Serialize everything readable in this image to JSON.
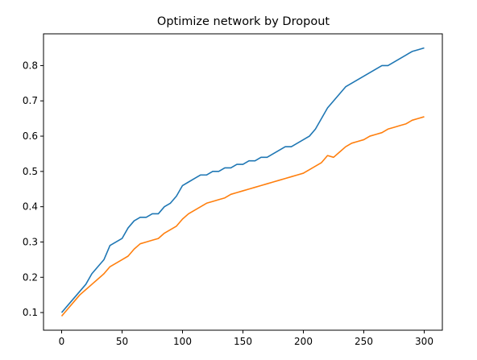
{
  "chart_data": {
    "type": "line",
    "title": "Optimize network by Dropout",
    "xlabel": "",
    "ylabel": "",
    "xlim": [
      -15,
      315
    ],
    "ylim": [
      0.05,
      0.89
    ],
    "x_ticks": [
      0,
      50,
      100,
      150,
      200,
      250,
      300
    ],
    "y_ticks": [
      0.1,
      0.2,
      0.3,
      0.4,
      0.5,
      0.6,
      0.7,
      0.8
    ],
    "grid": false,
    "legend": "none",
    "series": [
      {
        "color": "#1f77b4",
        "x": [
          0,
          5,
          10,
          15,
          20,
          25,
          30,
          35,
          40,
          45,
          50,
          55,
          60,
          65,
          70,
          75,
          80,
          85,
          90,
          95,
          100,
          105,
          110,
          115,
          120,
          125,
          130,
          135,
          140,
          145,
          150,
          155,
          160,
          165,
          170,
          175,
          180,
          185,
          190,
          195,
          200,
          205,
          210,
          215,
          220,
          225,
          230,
          235,
          240,
          245,
          250,
          255,
          260,
          265,
          270,
          275,
          280,
          285,
          290,
          295,
          300
        ],
        "values": [
          0.1,
          0.12,
          0.14,
          0.16,
          0.18,
          0.21,
          0.23,
          0.25,
          0.29,
          0.3,
          0.31,
          0.34,
          0.36,
          0.37,
          0.37,
          0.38,
          0.38,
          0.4,
          0.41,
          0.43,
          0.46,
          0.47,
          0.48,
          0.49,
          0.49,
          0.5,
          0.5,
          0.51,
          0.51,
          0.52,
          0.52,
          0.53,
          0.53,
          0.54,
          0.54,
          0.55,
          0.56,
          0.57,
          0.57,
          0.58,
          0.59,
          0.6,
          0.62,
          0.65,
          0.68,
          0.7,
          0.72,
          0.74,
          0.75,
          0.76,
          0.77,
          0.78,
          0.79,
          0.8,
          0.8,
          0.81,
          0.82,
          0.83,
          0.84,
          0.845,
          0.85
        ]
      },
      {
        "color": "#ff7f0e",
        "x": [
          0,
          5,
          10,
          15,
          20,
          25,
          30,
          35,
          40,
          45,
          50,
          55,
          60,
          65,
          70,
          75,
          80,
          85,
          90,
          95,
          100,
          105,
          110,
          115,
          120,
          125,
          130,
          135,
          140,
          145,
          150,
          155,
          160,
          165,
          170,
          175,
          180,
          185,
          190,
          195,
          200,
          205,
          210,
          215,
          220,
          225,
          230,
          235,
          240,
          245,
          250,
          255,
          260,
          265,
          270,
          275,
          280,
          285,
          290,
          295,
          300
        ],
        "values": [
          0.09,
          0.11,
          0.13,
          0.15,
          0.165,
          0.18,
          0.195,
          0.21,
          0.23,
          0.24,
          0.25,
          0.26,
          0.28,
          0.295,
          0.3,
          0.305,
          0.31,
          0.325,
          0.335,
          0.345,
          0.365,
          0.38,
          0.39,
          0.4,
          0.41,
          0.415,
          0.42,
          0.425,
          0.435,
          0.44,
          0.445,
          0.45,
          0.455,
          0.46,
          0.465,
          0.47,
          0.475,
          0.48,
          0.485,
          0.49,
          0.495,
          0.505,
          0.515,
          0.525,
          0.545,
          0.54,
          0.555,
          0.57,
          0.58,
          0.585,
          0.59,
          0.6,
          0.605,
          0.61,
          0.62,
          0.625,
          0.63,
          0.635,
          0.645,
          0.65,
          0.655
        ]
      }
    ]
  }
}
